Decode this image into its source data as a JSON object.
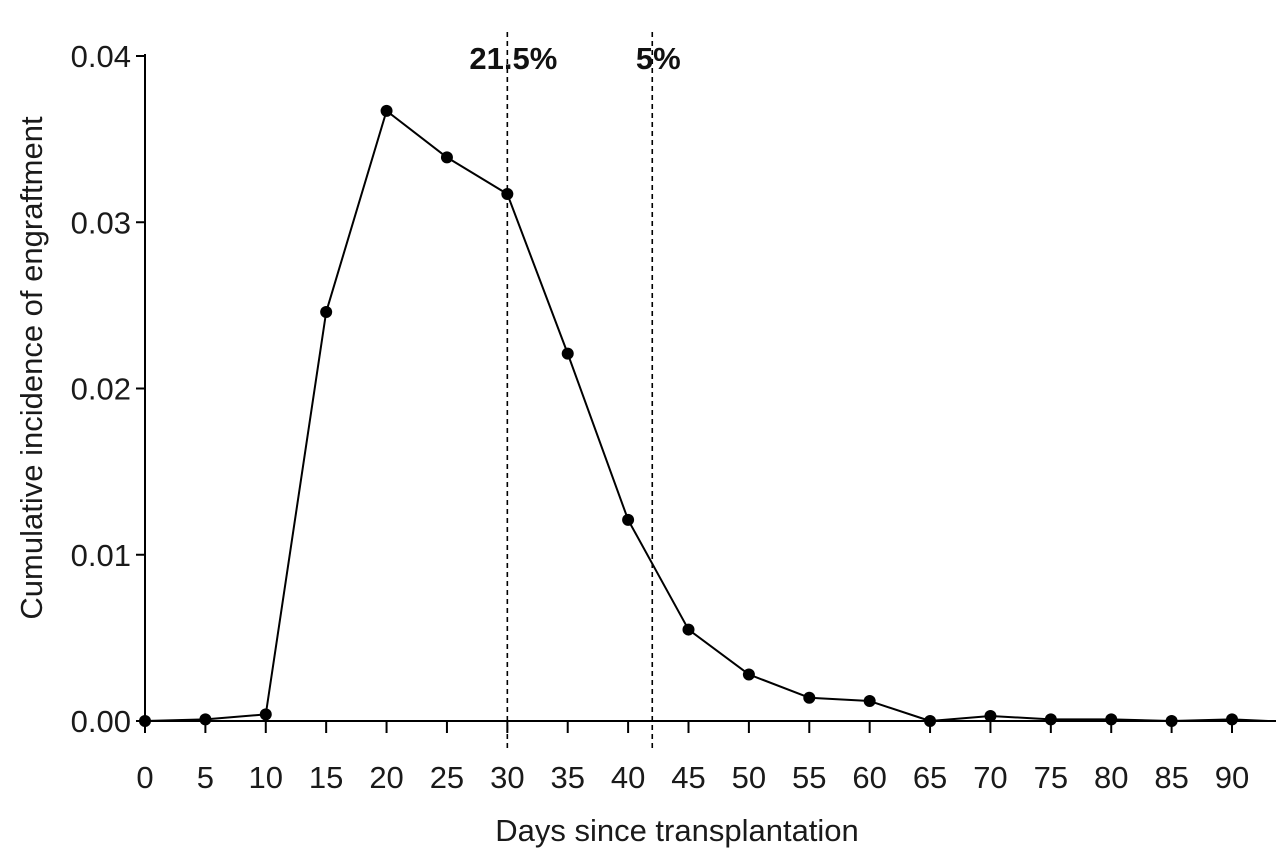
{
  "chart_data": {
    "type": "line",
    "title": "",
    "xlabel": "Days since transplantation",
    "ylabel": "Cumulative incidence of engraftment",
    "xlim": [
      0,
      93
    ],
    "ylim": [
      0,
      0.04
    ],
    "x_ticks": [
      0,
      5,
      10,
      15,
      20,
      25,
      30,
      35,
      40,
      45,
      50,
      55,
      60,
      65,
      70,
      75,
      80,
      85,
      90
    ],
    "x_tick_labels": [
      "0",
      "5",
      "10",
      "15",
      "20",
      "25",
      "30",
      "35",
      "40",
      "45",
      "50",
      "55",
      "60",
      "65",
      "70",
      "75",
      "80",
      "85",
      "90"
    ],
    "y_ticks": [
      0,
      0.01,
      0.02,
      0.03,
      0.04
    ],
    "y_tick_labels": [
      "0.00",
      "0.01",
      "0.02",
      "0.03",
      "0.04"
    ],
    "grid": false,
    "legend": "none",
    "series": [
      {
        "color": "#000000",
        "marker": "filled-circle",
        "points": [
          {
            "x": 0,
            "y": 0.0
          },
          {
            "x": 5,
            "y": 0.0001
          },
          {
            "x": 10,
            "y": 0.0004
          },
          {
            "x": 15,
            "y": 0.0246
          },
          {
            "x": 20,
            "y": 0.0367
          },
          {
            "x": 25,
            "y": 0.0339
          },
          {
            "x": 30,
            "y": 0.0317
          },
          {
            "x": 35,
            "y": 0.0221
          },
          {
            "x": 40,
            "y": 0.0121
          },
          {
            "x": 45,
            "y": 0.0055
          },
          {
            "x": 50,
            "y": 0.0028
          },
          {
            "x": 55,
            "y": 0.0014
          },
          {
            "x": 60,
            "y": 0.0012
          },
          {
            "x": 65,
            "y": 0.0
          },
          {
            "x": 70,
            "y": 0.0003
          },
          {
            "x": 75,
            "y": 0.0001
          },
          {
            "x": 80,
            "y": 0.0001
          },
          {
            "x": 85,
            "y": 0.0
          },
          {
            "x": 90,
            "y": 0.0001
          }
        ],
        "line_extends_to_x": 93,
        "line_end_y": 0.0
      }
    ],
    "annotations": [
      {
        "x": 30,
        "label": "21.5%",
        "style": "dashed-vertical-line"
      },
      {
        "x": 42,
        "label": "5%",
        "style": "dashed-vertical-line"
      }
    ]
  }
}
